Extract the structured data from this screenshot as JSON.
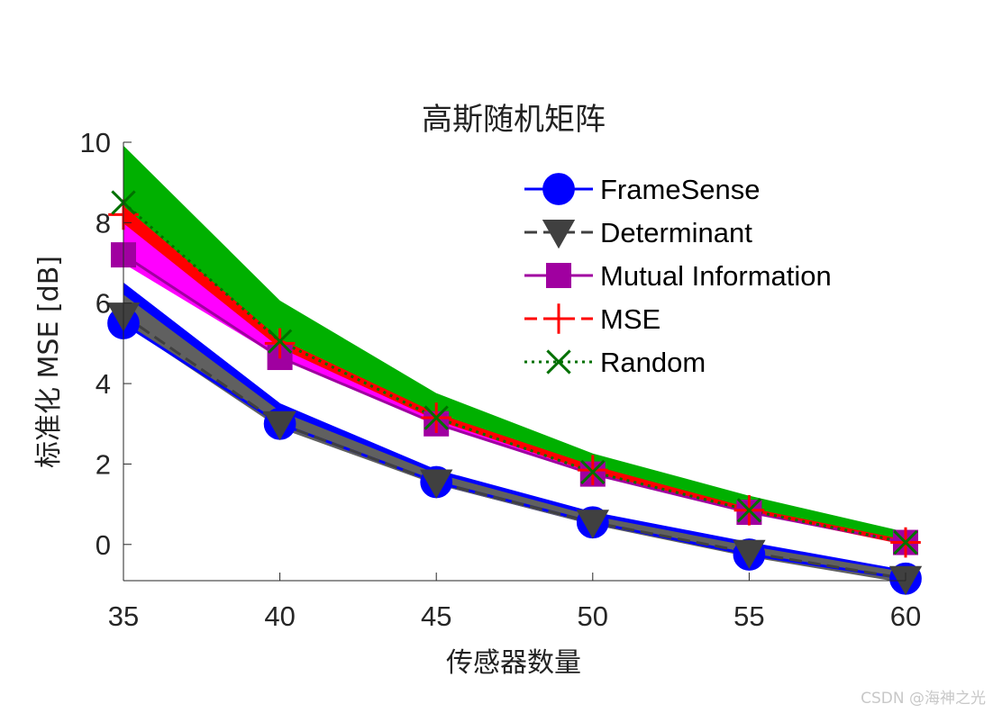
{
  "chart_data": {
    "type": "line",
    "title": "高斯随机矩阵",
    "xlabel": "传感器数量",
    "ylabel": "标准化 MSE [dB]",
    "x": [
      35,
      40,
      45,
      50,
      55,
      60
    ],
    "xlim": [
      35,
      60
    ],
    "ylim": [
      -0.9,
      10
    ],
    "xticks": [
      35,
      40,
      45,
      50,
      55,
      60
    ],
    "yticks": [
      0,
      2,
      4,
      6,
      8,
      10
    ],
    "grid": false,
    "legend_position": "top-right",
    "series": [
      {
        "name": "FrameSense",
        "color": "#0000ff",
        "line_style": "solid",
        "marker": "circle",
        "values": [
          5.5,
          3.0,
          1.55,
          0.55,
          -0.25,
          -0.85
        ],
        "band_upper": [
          6.5,
          3.5,
          1.85,
          0.8,
          0.05,
          -0.65
        ],
        "band_lower": [
          5.5,
          2.95,
          1.5,
          0.5,
          -0.25,
          -0.9
        ]
      },
      {
        "name": "Determinant",
        "color": "#404040",
        "line_style": "dashed",
        "marker": "triangle-down",
        "values": [
          5.7,
          3.0,
          1.55,
          0.55,
          -0.2,
          -0.85
        ],
        "band_upper": [
          6.2,
          3.3,
          1.75,
          0.7,
          -0.05,
          -0.7
        ],
        "band_lower": [
          5.5,
          2.9,
          1.5,
          0.5,
          -0.3,
          -0.95
        ],
        "band_color": "#606060"
      },
      {
        "name": "Mutual Information",
        "color": "#a000a0",
        "line_style": "solid",
        "marker": "square",
        "values": [
          7.2,
          4.65,
          3.0,
          1.75,
          0.8,
          0.05
        ],
        "band_upper": [
          8.2,
          5.0,
          3.15,
          1.85,
          0.85,
          0.1
        ],
        "band_lower": [
          7.0,
          4.65,
          3.0,
          1.75,
          0.8,
          0.05
        ],
        "band_color": "#ff00ff"
      },
      {
        "name": "MSE",
        "color": "#ff0000",
        "line_style": "dashed",
        "marker": "plus",
        "values": [
          8.2,
          5.0,
          3.15,
          1.85,
          0.85,
          0.05
        ],
        "band_upper": [
          8.4,
          5.1,
          3.25,
          1.95,
          0.9,
          0.1
        ],
        "band_lower": [
          8.0,
          4.9,
          3.1,
          1.8,
          0.8,
          0.0
        ],
        "band_color": "#ff0000"
      },
      {
        "name": "Random",
        "color": "#007000",
        "line_style": "dotted",
        "marker": "x",
        "values": [
          8.5,
          5.05,
          3.15,
          1.8,
          0.85,
          0.05
        ],
        "band_upper": [
          9.9,
          6.05,
          3.75,
          2.25,
          1.2,
          0.3
        ],
        "band_lower": [
          8.3,
          5.0,
          3.1,
          1.8,
          0.8,
          0.05
        ],
        "band_color": "#00b000"
      }
    ]
  },
  "watermark": "CSDN @海神之光"
}
